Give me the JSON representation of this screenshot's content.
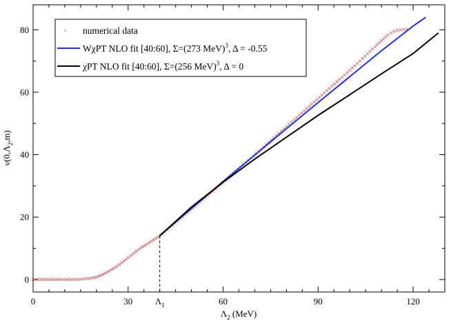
{
  "chart_data": {
    "type": "line",
    "title": "",
    "xlabel": "Λ2 (MeV)",
    "ylabel": "ν(0,Λ2,m)",
    "xlim": [
      0,
      130
    ],
    "ylim": [
      -4,
      88
    ],
    "x_ticks": [
      0,
      30,
      60,
      90,
      120
    ],
    "y_ticks": [
      0,
      20,
      40,
      60,
      80
    ],
    "x_tick_labels": [
      "0",
      "30",
      "60",
      "90",
      "120"
    ],
    "y_tick_labels": [
      "0",
      "20",
      "40",
      "60",
      "80"
    ],
    "legend_position": "top-left",
    "annotation": {
      "label": "Λ1",
      "x": 40,
      "y": 14
    },
    "series": [
      {
        "name": "numerical data",
        "style": "markers",
        "marker": "x",
        "color": "#c87878",
        "x": [
          0,
          4,
          8,
          12,
          15,
          18,
          20,
          22,
          24,
          26,
          28,
          30,
          32,
          34,
          36,
          38,
          40,
          44,
          48,
          52,
          56,
          60,
          64,
          68,
          72,
          76,
          80,
          84,
          88,
          92,
          96,
          100,
          104,
          108,
          110,
          112,
          113,
          114,
          115,
          116,
          117,
          118
        ],
        "y": [
          0,
          0,
          0,
          0,
          0.1,
          0.4,
          0.8,
          1.6,
          2.7,
          3.9,
          5.4,
          7,
          8.6,
          10.1,
          11.4,
          12.7,
          14,
          17.4,
          20.8,
          24.2,
          27.6,
          31,
          34.6,
          38.2,
          41.8,
          45.4,
          49,
          52.6,
          56.2,
          59.8,
          63.4,
          67,
          70.8,
          74.6,
          76.5,
          78.3,
          79.0,
          79.5,
          79.8,
          80.0,
          80.1,
          80.2
        ]
      },
      {
        "name": "WχPT NLO fit [40:60], Σ=(273 MeV)3, Δ = -0.55",
        "style": "line",
        "color": "#1f2de0",
        "x": [
          40,
          50,
          60,
          70,
          80,
          90,
          100,
          110,
          120,
          124
        ],
        "y": [
          14,
          22.8,
          31.4,
          39.9,
          48.3,
          56.7,
          65,
          73.3,
          81.2,
          84
        ]
      },
      {
        "name": "χPT NLO fit [40:60], Σ=(256 MeV)3, Δ = 0",
        "style": "line",
        "color": "#000000",
        "x": [
          40,
          50,
          60,
          70,
          80,
          90,
          100,
          110,
          120,
          128
        ],
        "y": [
          14,
          23.2,
          31.2,
          38.6,
          45.6,
          52.6,
          59.2,
          65.9,
          72.4,
          79
        ]
      }
    ]
  }
}
